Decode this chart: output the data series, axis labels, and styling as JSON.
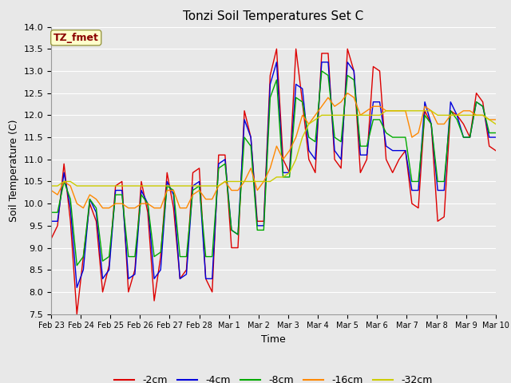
{
  "title": "Tonzi Soil Temperatures Set C",
  "xlabel": "Time",
  "ylabel": "Soil Temperature (C)",
  "ylim": [
    7.5,
    14.0
  ],
  "annotation": "TZ_fmet",
  "annotation_color": "#8B0000",
  "annotation_bg": "#FFFFCC",
  "bg_color": "#E8E8E8",
  "grid_color": "#D0D0D0",
  "series_colors": {
    "-2cm": "#DD0000",
    "-4cm": "#0000DD",
    "-8cm": "#00AA00",
    "-16cm": "#FF8800",
    "-32cm": "#CCCC00"
  },
  "xtick_labels": [
    "Feb 23",
    "Feb 24",
    "Feb 25",
    "Feb 26",
    "Feb 27",
    "Feb 28",
    "Mar 1",
    "Mar 2",
    "Mar 3",
    "Mar 4",
    "Mar 5",
    "Mar 6",
    "Mar 7",
    "Mar 8",
    "Mar 9",
    "Mar 10"
  ],
  "data_2cm": [
    9.2,
    9.5,
    10.9,
    9.6,
    7.5,
    8.8,
    10.0,
    9.6,
    8.0,
    8.6,
    10.4,
    10.5,
    8.0,
    8.5,
    10.5,
    9.8,
    7.8,
    8.8,
    10.7,
    9.9,
    8.3,
    8.5,
    10.7,
    10.8,
    8.3,
    8.0,
    11.1,
    11.1,
    9.0,
    9.0,
    12.1,
    11.5,
    9.6,
    9.6,
    12.9,
    13.5,
    11.0,
    10.7,
    13.5,
    12.3,
    11.0,
    10.7,
    13.4,
    13.4,
    11.0,
    10.8,
    13.5,
    13.0,
    10.7,
    11.0,
    13.1,
    13.0,
    11.0,
    10.7,
    11.0,
    11.2,
    10.0,
    9.9,
    12.1,
    11.8,
    9.6,
    9.7,
    12.1,
    12.0,
    11.8,
    11.5,
    12.5,
    12.3,
    11.3,
    11.2
  ],
  "data_4cm": [
    9.6,
    9.6,
    10.7,
    9.9,
    8.1,
    8.5,
    10.1,
    9.8,
    8.3,
    8.5,
    10.3,
    10.3,
    8.3,
    8.4,
    10.3,
    10.0,
    8.3,
    8.5,
    10.5,
    10.2,
    8.3,
    8.4,
    10.4,
    10.5,
    8.3,
    8.3,
    10.9,
    11.0,
    9.4,
    9.3,
    11.9,
    11.5,
    9.5,
    9.5,
    12.7,
    13.2,
    10.7,
    10.7,
    12.7,
    12.6,
    11.2,
    11.0,
    13.2,
    13.2,
    11.2,
    11.0,
    13.2,
    13.0,
    11.1,
    11.1,
    12.3,
    12.3,
    11.3,
    11.2,
    11.2,
    11.2,
    10.3,
    10.3,
    12.3,
    11.8,
    10.3,
    10.3,
    12.3,
    12.0,
    11.5,
    11.5,
    12.3,
    12.2,
    11.5,
    11.5
  ],
  "data_8cm": [
    9.8,
    9.8,
    10.5,
    10.1,
    8.6,
    8.8,
    10.1,
    9.9,
    8.7,
    8.8,
    10.2,
    10.2,
    8.8,
    8.8,
    10.2,
    10.0,
    8.8,
    8.9,
    10.4,
    10.3,
    8.8,
    8.8,
    10.3,
    10.4,
    8.8,
    8.8,
    10.8,
    10.9,
    9.4,
    9.3,
    11.5,
    11.3,
    9.4,
    9.4,
    12.4,
    12.8,
    10.6,
    10.6,
    12.4,
    12.3,
    11.5,
    11.4,
    13.0,
    12.9,
    11.5,
    11.4,
    12.9,
    12.8,
    11.3,
    11.3,
    11.9,
    11.9,
    11.6,
    11.5,
    11.5,
    11.5,
    10.5,
    10.5,
    12.0,
    11.8,
    10.5,
    10.5,
    12.1,
    11.9,
    11.5,
    11.5,
    12.3,
    12.2,
    11.6,
    11.6
  ],
  "data_16cm": [
    10.3,
    10.2,
    10.5,
    10.4,
    10.0,
    9.9,
    10.2,
    10.1,
    9.9,
    9.9,
    10.0,
    10.0,
    9.9,
    9.9,
    10.0,
    10.0,
    9.9,
    9.9,
    10.3,
    10.3,
    9.9,
    9.9,
    10.2,
    10.3,
    10.1,
    10.1,
    10.4,
    10.5,
    10.3,
    10.3,
    10.5,
    10.8,
    10.3,
    10.5,
    10.8,
    11.3,
    11.0,
    11.2,
    11.5,
    12.0,
    11.8,
    12.0,
    12.2,
    12.4,
    12.2,
    12.3,
    12.5,
    12.4,
    12.0,
    12.1,
    12.2,
    12.2,
    12.1,
    12.1,
    12.1,
    12.1,
    11.5,
    11.6,
    12.2,
    12.1,
    11.8,
    11.8,
    12.0,
    12.0,
    12.1,
    12.1,
    12.0,
    12.0,
    11.9,
    11.9
  ],
  "data_32cm": [
    10.4,
    10.4,
    10.5,
    10.5,
    10.4,
    10.4,
    10.4,
    10.4,
    10.4,
    10.4,
    10.4,
    10.4,
    10.4,
    10.4,
    10.4,
    10.4,
    10.4,
    10.4,
    10.4,
    10.4,
    10.4,
    10.4,
    10.4,
    10.4,
    10.4,
    10.4,
    10.4,
    10.5,
    10.5,
    10.5,
    10.5,
    10.5,
    10.5,
    10.5,
    10.5,
    10.6,
    10.6,
    10.7,
    11.0,
    11.5,
    11.8,
    11.9,
    12.0,
    12.0,
    12.0,
    12.0,
    12.0,
    12.0,
    12.0,
    12.0,
    12.0,
    12.0,
    12.1,
    12.1,
    12.1,
    12.1,
    12.1,
    12.1,
    12.1,
    12.1,
    12.0,
    12.0,
    12.0,
    12.0,
    12.0,
    12.0,
    12.0,
    12.0,
    11.9,
    11.8
  ]
}
